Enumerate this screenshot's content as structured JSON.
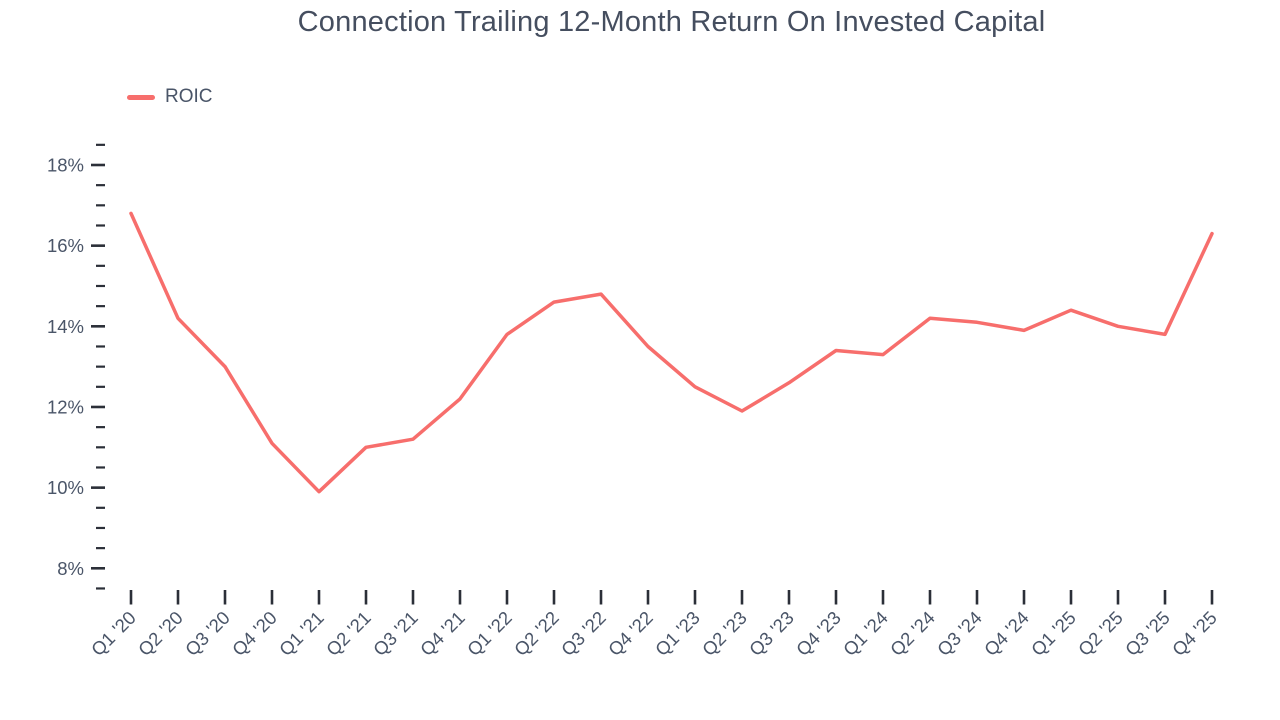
{
  "chart_data": {
    "type": "line",
    "title": "Connection Trailing 12-Month Return On Invested Capital",
    "categories": [
      "Q1 '20",
      "Q2 '20",
      "Q3 '20",
      "Q4 '20",
      "Q1 '21",
      "Q2 '21",
      "Q3 '21",
      "Q4 '21",
      "Q1 '22",
      "Q2 '22",
      "Q3 '22",
      "Q4 '22",
      "Q1 '23",
      "Q2 '23",
      "Q3 '23",
      "Q4 '23",
      "Q1 '24",
      "Q2 '24",
      "Q3 '24",
      "Q4 '24",
      "Q1 '25",
      "Q2 '25",
      "Q3 '25",
      "Q4 '25"
    ],
    "series": [
      {
        "name": "ROIC",
        "color": "#F76E6C",
        "values": [
          16.8,
          14.2,
          13.0,
          11.1,
          9.9,
          11.0,
          11.2,
          12.2,
          13.8,
          14.6,
          14.8,
          13.5,
          12.5,
          11.9,
          12.6,
          13.4,
          13.3,
          14.2,
          14.1,
          13.9,
          14.4,
          14.0,
          13.8,
          16.3
        ]
      }
    ],
    "xlabel": "",
    "ylabel": "",
    "y_axis": {
      "unit": "%",
      "min": 7.5,
      "max": 18.5,
      "major_step": 2,
      "minor_step": 0.5,
      "labels": [
        "8%",
        "10%",
        "12%",
        "14%",
        "16%",
        "18%"
      ],
      "label_values": [
        8,
        10,
        12,
        14,
        16,
        18
      ]
    },
    "grid": false,
    "legend_position": "top-left",
    "colors": {
      "line": "#F76E6C",
      "title_text": "#454E5F",
      "axis_text": "#4A5568",
      "tick": "#2B2F38",
      "background": "#FFFFFF"
    }
  }
}
